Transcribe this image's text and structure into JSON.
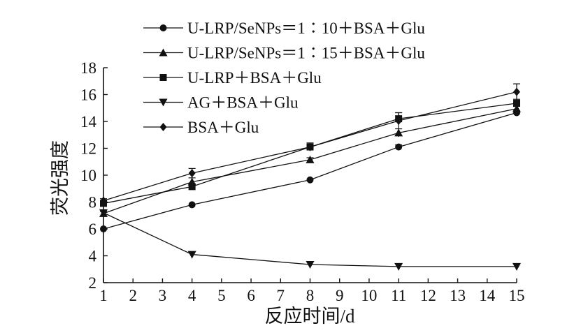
{
  "chart_data": {
    "type": "line",
    "xlabel": "反应时间/d",
    "ylabel": "荧光强度",
    "xlim": [
      1,
      15
    ],
    "ylim": [
      2,
      18
    ],
    "xticks": [
      1,
      2,
      3,
      4,
      5,
      6,
      7,
      8,
      9,
      10,
      11,
      12,
      13,
      14,
      15
    ],
    "yticks": [
      2,
      4,
      6,
      8,
      10,
      12,
      14,
      16,
      18
    ],
    "grid": false,
    "legend_position": "top-left",
    "x": [
      1,
      4,
      8,
      11,
      15
    ],
    "series": [
      {
        "name": "U-LRP/SeNPs＝1∶10＋BSA＋Glu",
        "marker": "circle",
        "values": [
          6.0,
          7.8,
          9.65,
          12.1,
          14.65
        ],
        "errors": [
          0.1,
          0.1,
          0.1,
          0.15,
          0.15
        ]
      },
      {
        "name": "U-LRP/SeNPs＝1∶15＋BSA＋Glu",
        "marker": "triangle-up",
        "values": [
          7.15,
          9.5,
          11.15,
          13.15,
          14.95
        ],
        "errors": [
          0.15,
          0.3,
          0.15,
          0.3,
          0.2
        ]
      },
      {
        "name": "U-LRP＋BSA＋Glu",
        "marker": "square",
        "values": [
          7.9,
          9.15,
          12.1,
          14.2,
          15.35
        ],
        "errors": [
          0.15,
          0.2,
          0.3,
          0.45,
          0.3
        ]
      },
      {
        "name": "AG＋BSA＋Glu",
        "marker": "triangle-down",
        "values": [
          7.2,
          4.1,
          3.35,
          3.2,
          3.2
        ],
        "errors": [
          0.1,
          0.1,
          0.1,
          0.1,
          0.1
        ]
      },
      {
        "name": "BSA＋Glu",
        "marker": "diamond",
        "values": [
          8.1,
          10.15,
          12.1,
          14.05,
          16.2
        ],
        "errors": [
          0.15,
          0.35,
          0.2,
          0.6,
          0.6
        ]
      }
    ]
  }
}
